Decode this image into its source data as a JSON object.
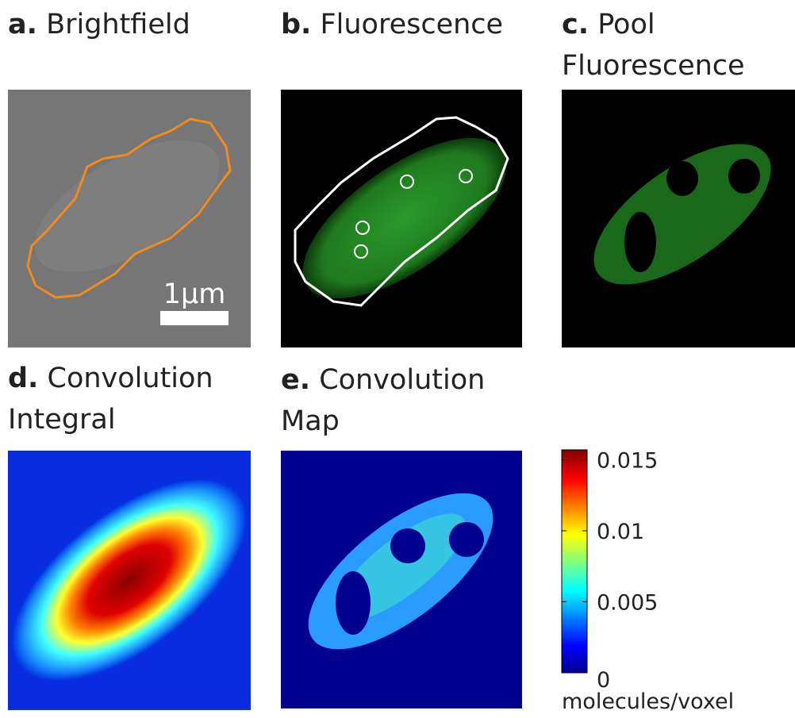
{
  "panels": [
    {
      "letter": "a.",
      "title": [
        "Brightfield"
      ]
    },
    {
      "letter": "b.",
      "title": [
        "Fluorescence"
      ]
    },
    {
      "letter": "c.",
      "title": [
        "Pool",
        "Fluorescence"
      ]
    },
    {
      "letter": "d.",
      "title": [
        "Convolution",
        "Integral"
      ]
    },
    {
      "letter": "e.",
      "title": [
        "Convolution",
        "Map"
      ]
    }
  ],
  "scale_bar": "1μm",
  "colorbar": {
    "label": "molecules/voxel",
    "clim": [
      0,
      0.0157
    ],
    "ticks": [
      0,
      0.005,
      0.01,
      0.015
    ]
  }
}
